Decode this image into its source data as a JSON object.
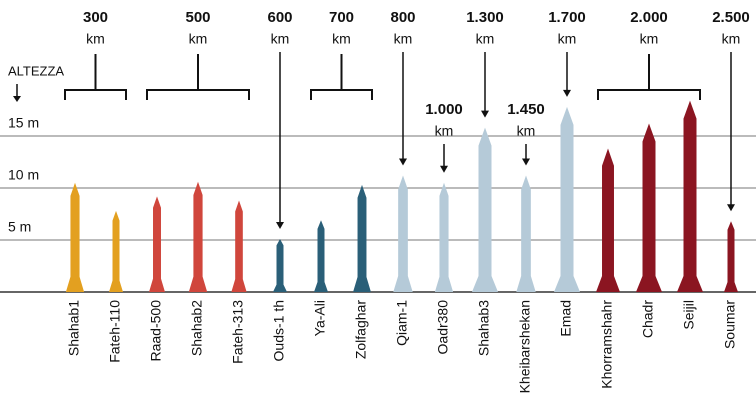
{
  "chart_data": {
    "type": "bar",
    "y_title": "ALTEZZA",
    "unit": "km",
    "ylim": [
      0,
      20
    ],
    "yticks": [
      {
        "value": 5,
        "label": "5 m"
      },
      {
        "value": 10,
        "label": "10 m"
      },
      {
        "value": 15,
        "label": "15 m"
      }
    ],
    "grid": true,
    "groups": [
      {
        "range": 300,
        "color": "#e3a020",
        "categories": [
          "Shahab1",
          "Fateh-110"
        ],
        "values": [
          10.5,
          7.8
        ]
      },
      {
        "range": 500,
        "color": "#d0463c",
        "categories": [
          "Raad-500",
          "Shahab2",
          "Fateh-313"
        ],
        "values": [
          9.2,
          10.6,
          8.8
        ]
      },
      {
        "range": 600,
        "color": "#2a5f78",
        "categories": [
          "Ouds-1 th"
        ],
        "values": [
          5.1
        ]
      },
      {
        "range": 700,
        "color": "#2a5f78",
        "categories": [
          "Ya-Ali",
          "Zolfaghar"
        ],
        "values": [
          6.9,
          10.3
        ]
      },
      {
        "range": 800,
        "color": "#b5cad8",
        "categories": [
          "Qiam-1"
        ],
        "values": [
          11.2
        ]
      },
      {
        "range": {
          "value": 1000,
          "label": "1.000"
        },
        "color": "#b5cad8",
        "categories": [
          "Oadr380"
        ],
        "values": [
          10.5
        ]
      },
      {
        "range": {
          "value": 1300,
          "label": "1.300"
        },
        "color": "#b5cad8",
        "categories": [
          "Shahab3"
        ],
        "values": [
          15.8
        ]
      },
      {
        "range": {
          "value": 1450,
          "label": "1.450"
        },
        "color": "#b5cad8",
        "categories": [
          "Kheibarshekan"
        ],
        "values": [
          11.2
        ]
      },
      {
        "range": {
          "value": 1700,
          "label": "1.700"
        },
        "color": "#b5cad8",
        "categories": [
          "Emad"
        ],
        "values": [
          17.8
        ]
      },
      {
        "range": {
          "value": 2000,
          "label": "2.000"
        },
        "color": "#8b1521",
        "categories": [
          "Khorramshahr",
          "Chadr",
          "Seijil"
        ],
        "values": [
          13.8,
          16.2,
          18.4
        ]
      },
      {
        "range": {
          "value": 2500,
          "label": "2.500"
        },
        "color": "#8b1521",
        "categories": [
          "Soumar"
        ],
        "values": [
          6.8
        ]
      }
    ]
  }
}
